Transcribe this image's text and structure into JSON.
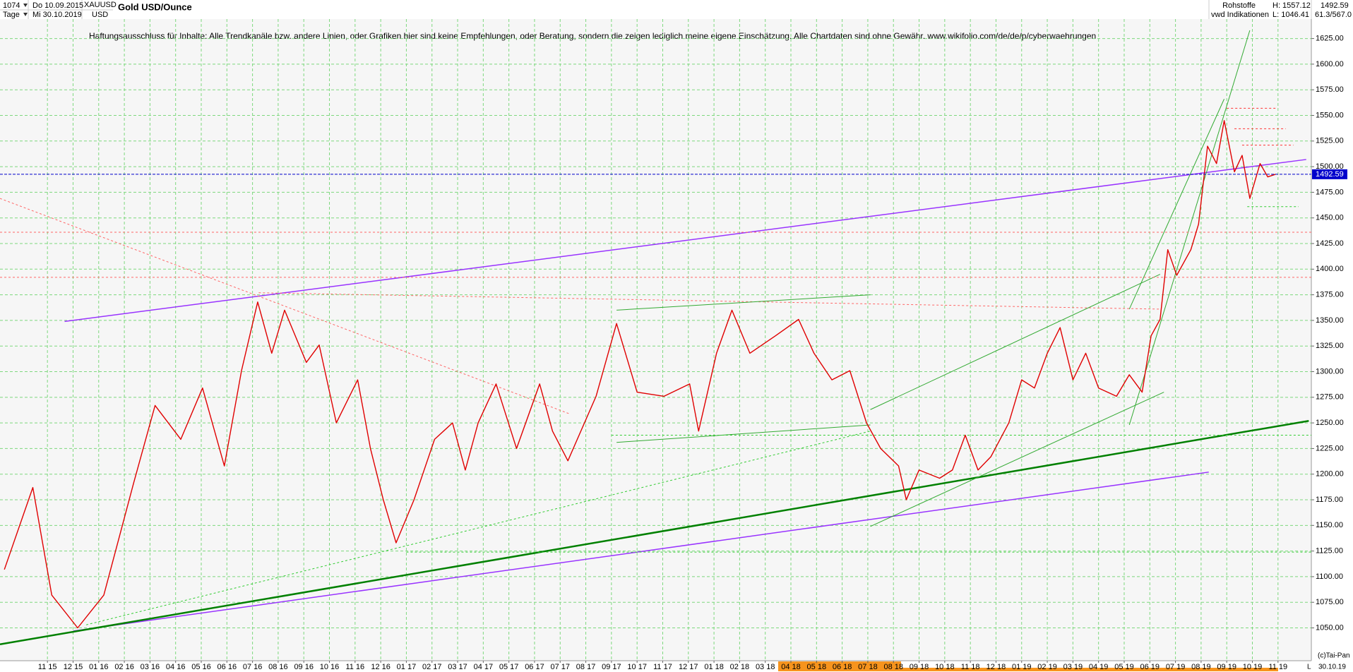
{
  "chart_data": {
    "type": "line",
    "title": "Gold USD/Ounce",
    "header": {
      "bars": "1074",
      "from": "Do 10.09.2015",
      "period": "Tage",
      "to": "Mi 30.10.2019",
      "symbol": "XAUUSD",
      "currency": "USD",
      "group": "Rohstoffe",
      "source": "vwd Indikationen",
      "high": "H: 1557.12",
      "low": "L: 1046.41",
      "ratio": "61.3/567.0"
    },
    "disclaimer": "Haftungsausschluss für Inhalte: Alle Trendkanäle bzw. andere Linien, oder Grafiken hier sind keine Empfehlungen, oder Beratung, sondern die zeigen lediglich meine eigene Einschätzung. Alle Chartdaten sind ohne Gewähr.  www.wikifolio.com/de/de/p/cyberwaehrungen",
    "copyright": "(c)Tai-Pan",
    "footer_date": "30.10.19",
    "footer_scale": "L",
    "last_price": 1492.59,
    "series": [
      {
        "name": "XAUUSD",
        "color": "#e00000",
        "x": [
          -1.68,
          -0.57,
          0.17,
          1.18,
          2.2,
          3.36,
          4.2,
          5.2,
          6.05,
          6.9,
          7.57,
          8.2,
          8.75,
          9.25,
          10.1,
          10.6,
          11.27,
          12.1,
          12.6,
          13.1,
          13.6,
          14.3,
          15.1,
          15.8,
          16.3,
          16.8,
          17.5,
          18.3,
          19.2,
          19.7,
          20.3,
          21.4,
          22.2,
          23.0,
          24.05,
          25.05,
          25.4,
          26.1,
          26.7,
          27.4,
          28.4,
          29.3,
          29.9,
          30.6,
          31.3,
          31.95,
          32.5,
          33.2,
          33.5,
          34.0,
          34.8,
          35.3,
          35.8,
          36.3,
          36.8,
          37.5,
          38.0,
          38.5,
          39.0,
          39.5,
          40.0,
          40.5,
          41.0,
          41.7,
          42.2,
          42.7,
          43.05,
          43.4,
          43.7,
          44.05,
          44.6,
          44.9,
          45.25,
          45.6,
          45.9,
          46.3,
          46.6,
          46.9,
          47.3,
          47.6,
          47.9
        ],
        "values": [
          1107,
          1187,
          1082,
          1050,
          1082,
          1191,
          1267,
          1234,
          1284,
          1208,
          1301,
          1368,
          1318,
          1360,
          1309,
          1326,
          1250,
          1292,
          1225,
          1175,
          1133,
          1175,
          1234,
          1250,
          1204,
          1250,
          1288,
          1225,
          1288,
          1242,
          1213,
          1276,
          1347,
          1280,
          1276,
          1288,
          1242,
          1318,
          1360,
          1318,
          1335,
          1351,
          1318,
          1292,
          1301,
          1250,
          1225,
          1208,
          1175,
          1204,
          1196,
          1204,
          1238,
          1204,
          1217,
          1250,
          1292,
          1284,
          1318,
          1343,
          1292,
          1318,
          1284,
          1276,
          1297,
          1280,
          1335,
          1351,
          1419,
          1394,
          1419,
          1444,
          1520,
          1503,
          1545,
          1495,
          1511,
          1469,
          1503,
          1490,
          1492.59
        ]
      }
    ],
    "trendlines": [
      {
        "x": [
          0.67,
          49.1
        ],
        "y": [
          1349,
          1507
        ],
        "color": "#9933ff",
        "width": 1.5,
        "dash": false
      },
      {
        "x": [
          1.01,
          45.3
        ],
        "y": [
          1047,
          1202
        ],
        "color": "#9933ff",
        "width": 1.5,
        "dash": false
      },
      {
        "x": [
          -1.85,
          49.2
        ],
        "y": [
          1034,
          1252
        ],
        "color": "#008000",
        "width": 2.5,
        "dash": false
      },
      {
        "x": [
          -1.85,
          20.35
        ],
        "y": [
          1469,
          1259
        ],
        "color": "#ff6666",
        "width": 1,
        "dash": true
      },
      {
        "x": [
          1.51,
          32.1
        ],
        "y": [
          1053,
          1242
        ],
        "color": "#33cc33",
        "width": 1,
        "dash": true
      },
      {
        "x": [
          8.24,
          43.4
        ],
        "y": [
          1377,
          1361
        ],
        "color": "#ff6666",
        "width": 1,
        "dash": true
      },
      {
        "x": [
          22.2,
          32.1
        ],
        "y": [
          1360,
          1375
        ],
        "color": "#33aa33",
        "width": 1,
        "dash": false
      },
      {
        "x": [
          22.2,
          32.1
        ],
        "y": [
          1231,
          1248
        ],
        "color": "#33aa33",
        "width": 1,
        "dash": false
      },
      {
        "x": [
          32.1,
          43.55
        ],
        "y": [
          1149,
          1280
        ],
        "color": "#33aa33",
        "width": 1,
        "dash": false
      },
      {
        "x": [
          32.1,
          43.4
        ],
        "y": [
          1263,
          1395
        ],
        "color": "#33aa33",
        "width": 1,
        "dash": false
      },
      {
        "x": [
          42.2,
          46.9
        ],
        "y": [
          1248,
          1633
        ],
        "color": "#33aa33",
        "width": 1,
        "dash": false
      },
      {
        "x": [
          42.2,
          45.9
        ],
        "y": [
          1361,
          1566
        ],
        "color": "#33aa33",
        "width": 1,
        "dash": false
      },
      {
        "x": [
          22.0,
          49.3
        ],
        "y": [
          1238,
          1238
        ],
        "color": "#33cc33",
        "width": 1,
        "dash": true
      },
      {
        "x": [
          14.0,
          49.3
        ],
        "y": [
          1124,
          1124
        ],
        "color": "#33cc33",
        "width": 1,
        "dash": true
      },
      {
        "x": [
          -1.85,
          49.3
        ],
        "y": [
          1392,
          1392
        ],
        "color": "#ff6666",
        "width": 1,
        "dash": true
      },
      {
        "x": [
          -1.85,
          49.3
        ],
        "y": [
          1436,
          1436
        ],
        "color": "#ff6666",
        "width": 1,
        "dash": true
      },
      {
        "x": [
          46.0,
          47.9
        ],
        "y": [
          1557,
          1557
        ],
        "color": "#ff3333",
        "width": 1,
        "dash": true
      },
      {
        "x": [
          46.3,
          48.3
        ],
        "y": [
          1537,
          1537
        ],
        "color": "#ff3333",
        "width": 1,
        "dash": true
      },
      {
        "x": [
          46.6,
          48.6
        ],
        "y": [
          1521,
          1521
        ],
        "color": "#ff3333",
        "width": 1,
        "dash": true
      },
      {
        "x": [
          46.8,
          48.8
        ],
        "y": [
          1461,
          1461
        ],
        "color": "#33cc33",
        "width": 1,
        "dash": true
      }
    ],
    "xlim": [
      -1.85,
      49.3
    ],
    "xticks": [
      {
        "value": 0,
        "label": "11 15"
      },
      {
        "value": 1,
        "label": "12 15"
      },
      {
        "value": 2,
        "label": "01 16"
      },
      {
        "value": 3,
        "label": "02 16"
      },
      {
        "value": 4,
        "label": "03 16"
      },
      {
        "value": 5,
        "label": "04 16"
      },
      {
        "value": 6,
        "label": "05 16"
      },
      {
        "value": 7,
        "label": "06 16"
      },
      {
        "value": 8,
        "label": "07 16"
      },
      {
        "value": 9,
        "label": "08 16"
      },
      {
        "value": 10,
        "label": "09 16"
      },
      {
        "value": 11,
        "label": "10 16"
      },
      {
        "value": 12,
        "label": "11 16"
      },
      {
        "value": 13,
        "label": "12 16"
      },
      {
        "value": 14,
        "label": "01 17"
      },
      {
        "value": 15,
        "label": "02 17"
      },
      {
        "value": 16,
        "label": "03 17"
      },
      {
        "value": 17,
        "label": "04 17"
      },
      {
        "value": 18,
        "label": "05 17"
      },
      {
        "value": 19,
        "label": "06 17"
      },
      {
        "value": 20,
        "label": "07 17"
      },
      {
        "value": 21,
        "label": "08 17"
      },
      {
        "value": 22,
        "label": "09 17"
      },
      {
        "value": 23,
        "label": "10 17"
      },
      {
        "value": 24,
        "label": "11 17"
      },
      {
        "value": 25,
        "label": "12 17"
      },
      {
        "value": 26,
        "label": "01 18"
      },
      {
        "value": 27,
        "label": "02 18"
      },
      {
        "value": 28,
        "label": "03 18"
      },
      {
        "value": 29,
        "label": "04 18"
      },
      {
        "value": 30,
        "label": "05 18"
      },
      {
        "value": 31,
        "label": "06 18"
      },
      {
        "value": 32,
        "label": "07 18"
      },
      {
        "value": 33,
        "label": "08 18"
      },
      {
        "value": 34,
        "label": "09 18"
      },
      {
        "value": 35,
        "label": "10 18"
      },
      {
        "value": 36,
        "label": "11 18"
      },
      {
        "value": 37,
        "label": "12 18"
      },
      {
        "value": 38,
        "label": "01 19"
      },
      {
        "value": 39,
        "label": "02 19"
      },
      {
        "value": 40,
        "label": "03 19"
      },
      {
        "value": 41,
        "label": "04 19"
      },
      {
        "value": 42,
        "label": "05 19"
      },
      {
        "value": 43,
        "label": "06 19"
      },
      {
        "value": 44,
        "label": "07 19"
      },
      {
        "value": 45,
        "label": "08 19"
      },
      {
        "value": 46,
        "label": "09 19"
      },
      {
        "value": 47,
        "label": "10 19"
      },
      {
        "value": 48,
        "label": "11 19"
      }
    ],
    "ylim": [
      1018,
      1644
    ],
    "yticks": [
      {
        "value": 1050,
        "label": "1050.00"
      },
      {
        "value": 1075,
        "label": "1075.00"
      },
      {
        "value": 1100,
        "label": "1100.00"
      },
      {
        "value": 1125,
        "label": "1125.00"
      },
      {
        "value": 1150,
        "label": "1150.00"
      },
      {
        "value": 1175,
        "label": "1175.00"
      },
      {
        "value": 1200,
        "label": "1200.00"
      },
      {
        "value": 1225,
        "label": "1225.00"
      },
      {
        "value": 1250,
        "label": "1250.00"
      },
      {
        "value": 1275,
        "label": "1275.00"
      },
      {
        "value": 1300,
        "label": "1300.00"
      },
      {
        "value": 1325,
        "label": "1325.00"
      },
      {
        "value": 1350,
        "label": "1350.00"
      },
      {
        "value": 1375,
        "label": "1375.00"
      },
      {
        "value": 1400,
        "label": "1400.00"
      },
      {
        "value": 1425,
        "label": "1425.00"
      },
      {
        "value": 1450,
        "label": "1450.00"
      },
      {
        "value": 1475,
        "label": "1475.00"
      },
      {
        "value": 1500,
        "label": "1500.00"
      },
      {
        "value": 1525,
        "label": "1525.00"
      },
      {
        "value": 1550,
        "label": "1550.00"
      },
      {
        "value": 1575,
        "label": "1575.00"
      },
      {
        "value": 1600,
        "label": "1600.00"
      },
      {
        "value": 1625,
        "label": "1625.00"
      }
    ],
    "grid": true,
    "grid_color": "#7ed87e",
    "last_price_color": "#0000cc"
  }
}
